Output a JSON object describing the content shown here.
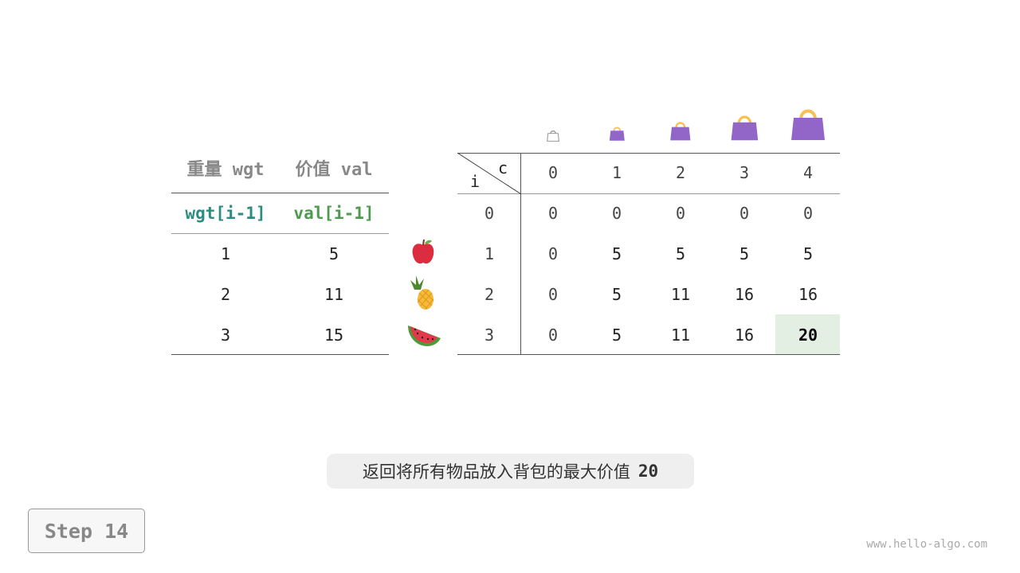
{
  "left_table": {
    "headers": [
      "重量 wgt",
      "价值 val"
    ],
    "subheaders": [
      "wgt[i-1]",
      "val[i-1]"
    ],
    "rows": [
      [
        "1",
        "5"
      ],
      [
        "2",
        "11"
      ],
      [
        "3",
        "15"
      ]
    ]
  },
  "items": [
    "apple-icon",
    "pineapple-icon",
    "watermelon-icon"
  ],
  "dp_table": {
    "corner_row_label": "i",
    "corner_col_label": "c",
    "capacities": [
      "0",
      "1",
      "2",
      "3",
      "4"
    ],
    "row_labels": [
      "0",
      "1",
      "2",
      "3"
    ],
    "cells": [
      [
        "0",
        "0",
        "0",
        "0",
        "0"
      ],
      [
        "0",
        "5",
        "5",
        "5",
        "5"
      ],
      [
        "0",
        "5",
        "11",
        "16",
        "16"
      ],
      [
        "0",
        "5",
        "11",
        "16",
        "20"
      ]
    ],
    "highlight_color": "#e3efe3"
  },
  "bag_color": "#9166c8",
  "handle_color": "#f7c04f",
  "caption": {
    "text": "返回将所有物品放入背包的最大价值",
    "value": "20"
  },
  "step_label": "Step 14",
  "watermark": "www.hello-algo.com"
}
